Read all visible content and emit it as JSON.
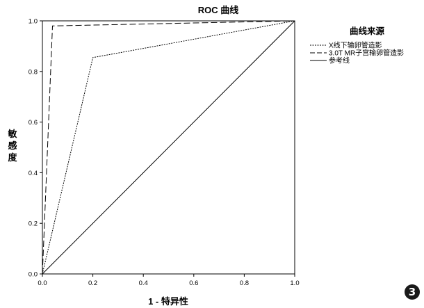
{
  "chart_data": {
    "type": "line",
    "title": "ROC 曲线",
    "xlabel": "1 - 特异性",
    "ylabel": "敏感度",
    "xlim": [
      0,
      1
    ],
    "ylim": [
      0,
      1
    ],
    "xticks": [
      "0.0",
      "0.2",
      "0.4",
      "0.6",
      "0.8",
      "1.0"
    ],
    "yticks": [
      "0.0",
      "0.2",
      "0.4",
      "0.6",
      "0.8",
      "1.0"
    ],
    "grid": false,
    "legend_title": "曲线来源",
    "legend_position": "right",
    "series": [
      {
        "name": "X线下输卵管造影",
        "style": "dotted",
        "color": "#000000",
        "x": [
          0.0,
          0.2,
          1.0
        ],
        "y": [
          0.0,
          0.855,
          1.0
        ]
      },
      {
        "name": "3.0T MR子宫输卵管造影",
        "style": "dashed",
        "color": "#000000",
        "x": [
          0.0,
          0.04,
          1.0
        ],
        "y": [
          0.0,
          0.98,
          1.0
        ]
      },
      {
        "name": "参考线",
        "style": "solid",
        "color": "#000000",
        "x": [
          0.0,
          1.0
        ],
        "y": [
          0.0,
          1.0
        ]
      }
    ]
  },
  "badge": "3"
}
